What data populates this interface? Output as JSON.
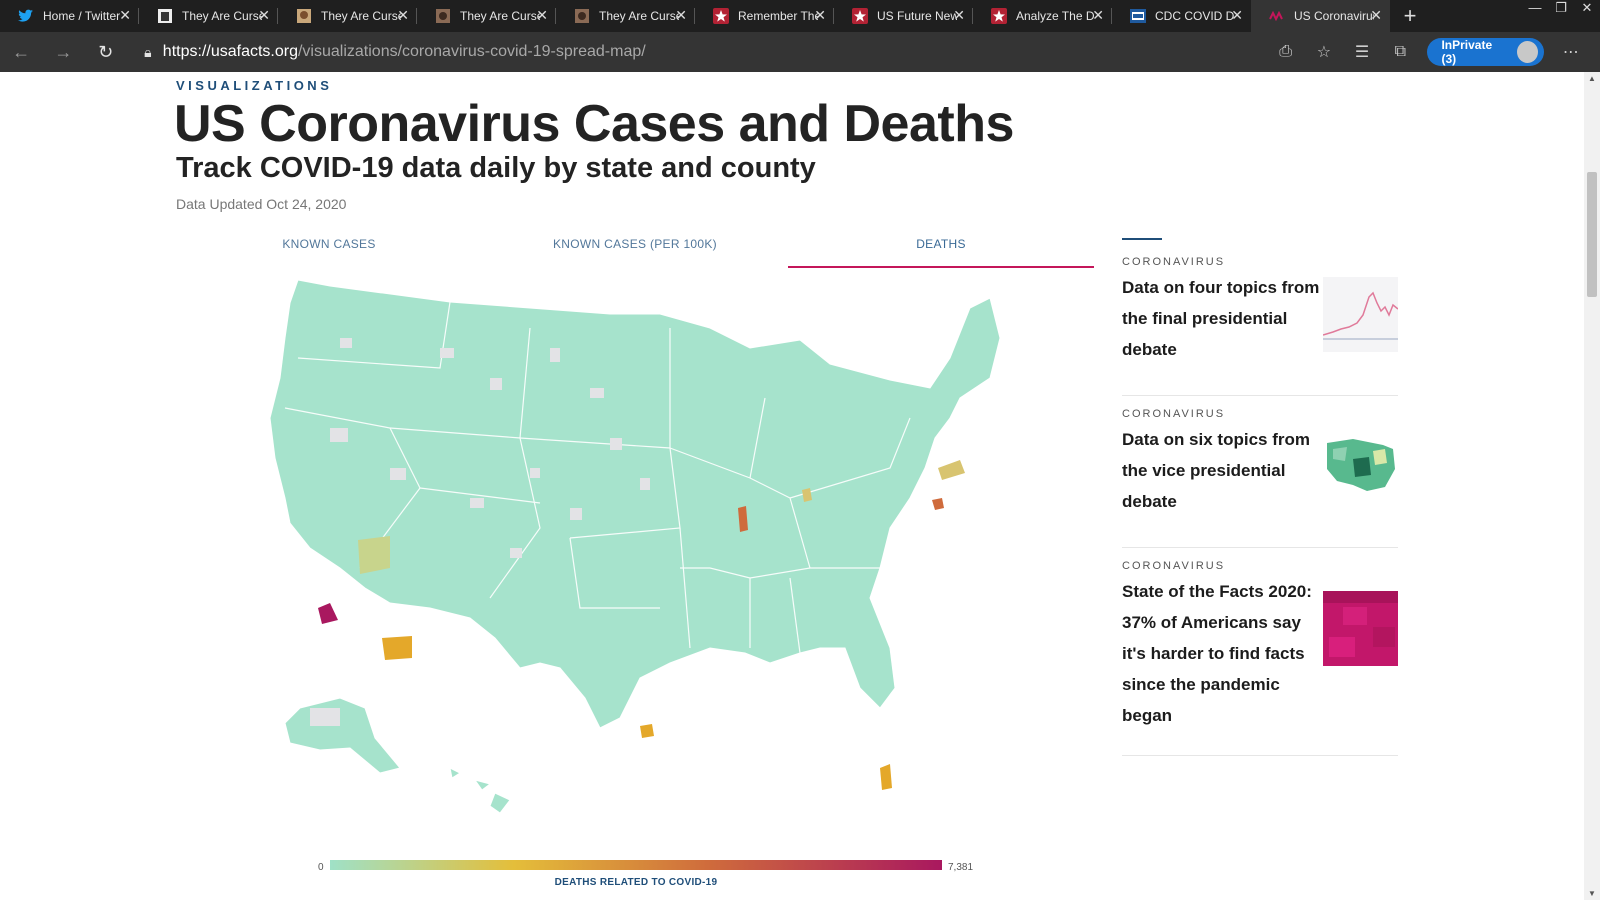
{
  "browser": {
    "tabs": [
      {
        "title": "Home / Twitter",
        "favicon": "twitter-bird",
        "active": false
      },
      {
        "title": "They Are Cursed",
        "favicon": "image-thumb",
        "active": false
      },
      {
        "title": "They Are Cursed",
        "favicon": "image-thumb",
        "active": false
      },
      {
        "title": "They Are Cursed",
        "favicon": "image-thumb",
        "active": false
      },
      {
        "title": "They Are Cursed",
        "favicon": "image-thumb",
        "active": false
      },
      {
        "title": "Remember The",
        "favicon": "star-badge",
        "active": false
      },
      {
        "title": "US Future News",
        "favicon": "star-badge",
        "active": false
      },
      {
        "title": "Analyze The D",
        "favicon": "star-badge",
        "active": false
      },
      {
        "title": "CDC COVID D",
        "favicon": "cdc-logo",
        "active": false
      },
      {
        "title": "US Coronavirus",
        "favicon": "usafacts-logo",
        "active": true
      }
    ],
    "url_host": "https://usafacts.org",
    "url_path": "/visualizations/coronavirus-covid-19-spread-map/",
    "inprivate_label": "InPrivate (3)"
  },
  "page": {
    "eyebrow": "VISUALIZATIONS",
    "title": "US Coronavirus Cases and Deaths",
    "subtitle": "Track COVID-19 data daily by state and county",
    "updated": "Data Updated Oct 24, 2020",
    "map_tabs": [
      {
        "label": "KNOWN CASES",
        "active": false
      },
      {
        "label": "KNOWN CASES (PER 100K)",
        "active": false
      },
      {
        "label": "DEATHS",
        "active": true
      }
    ],
    "legend": {
      "min": "0",
      "max": "7,381",
      "label": "DEATHS RELATED TO COVID-19",
      "colors": [
        "#9fe1c7",
        "#e4be3a",
        "#cf6b3c",
        "#a9185f"
      ]
    }
  },
  "sidebar": {
    "articles": [
      {
        "kicker": "CORONAVIRUS",
        "headline": "Data on four topics from the final presidential debate",
        "thumb": "line-chart-thumbnail"
      },
      {
        "kicker": "CORONAVIRUS",
        "headline": "Data on six topics from the vice presidential debate",
        "thumb": "us-map-thumbnail"
      },
      {
        "kicker": "CORONAVIRUS",
        "headline": "State of the Facts 2020: 37% of Americans say it's harder to find facts since the pandemic began",
        "thumb": "magenta-grid-thumbnail"
      }
    ]
  },
  "colors": {
    "accent_tab": "#c4165a",
    "brand_blue": "#1f4e79",
    "map_base": "#a6e3cc",
    "map_no_data": "#e3e3e6"
  }
}
